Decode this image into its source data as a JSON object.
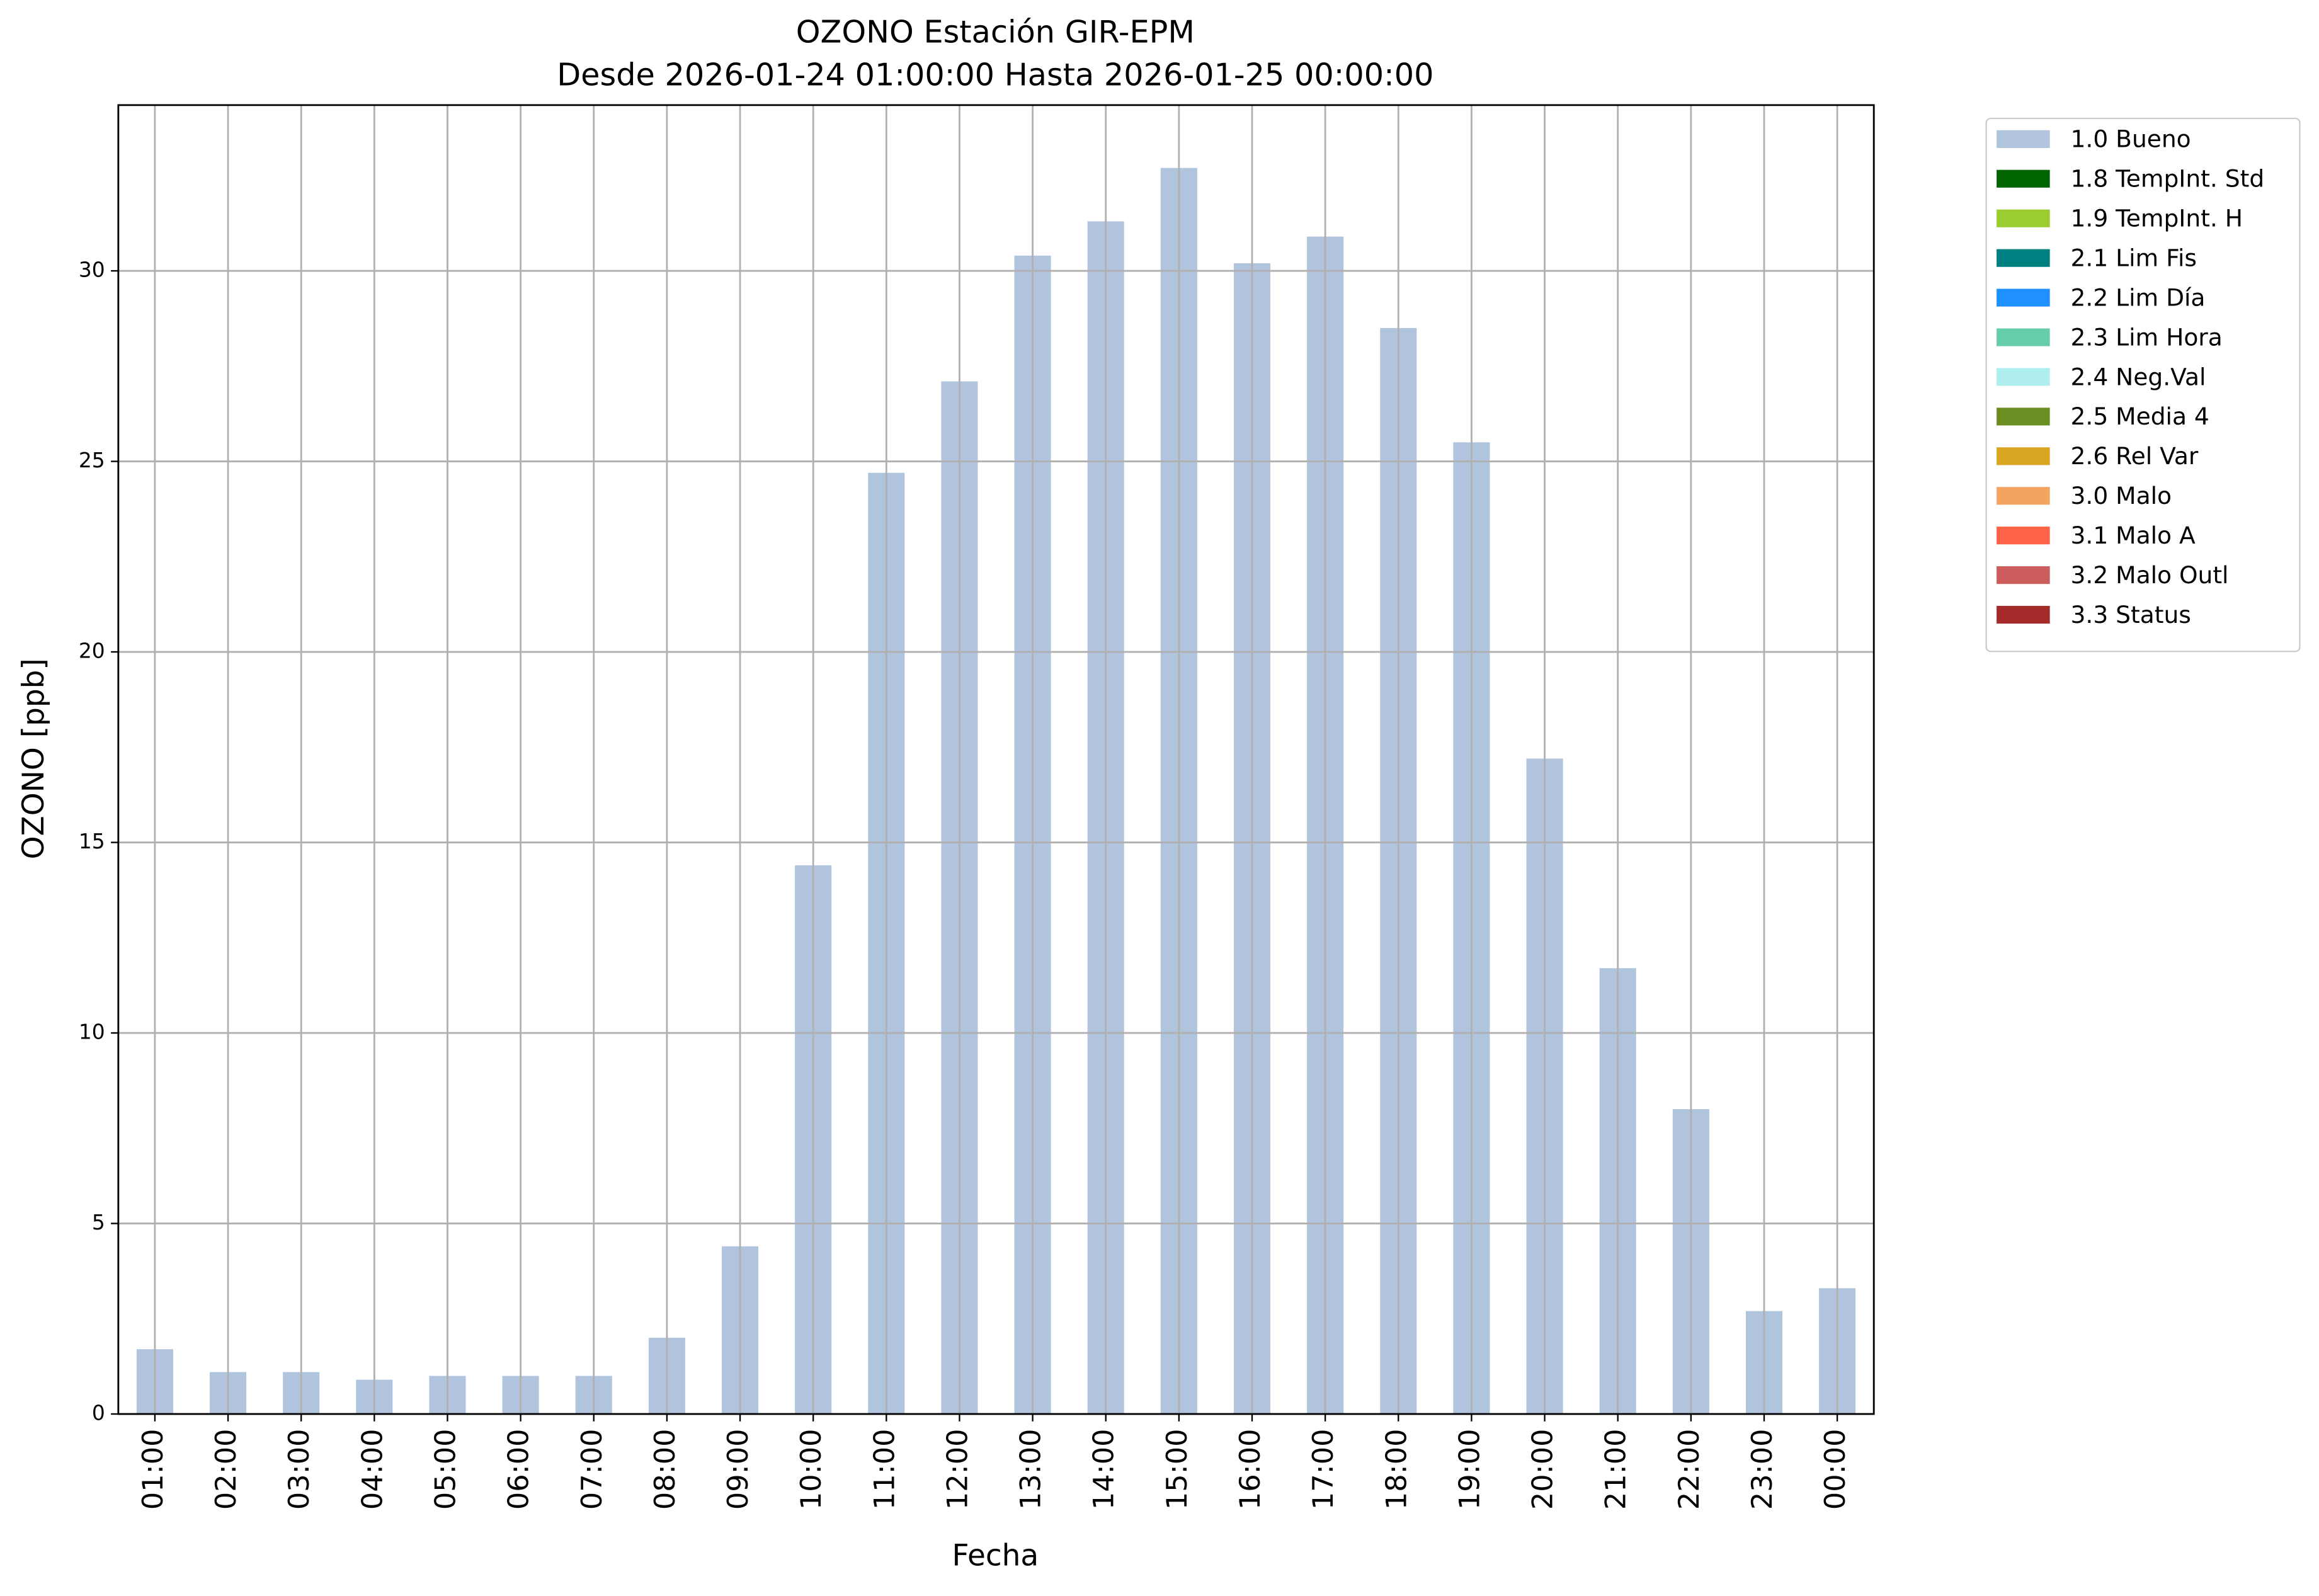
{
  "chart_data": {
    "type": "bar",
    "title": "OZONO Estación GIR-EPM",
    "subtitle": "Desde 2026-01-24 01:00:00 Hasta 2026-01-25 00:00:00",
    "x_label": "Fecha",
    "y_label": "OZONO [ppb]",
    "categories": [
      "01:00",
      "02:00",
      "03:00",
      "04:00",
      "05:00",
      "06:00",
      "07:00",
      "08:00",
      "09:00",
      "10:00",
      "11:00",
      "12:00",
      "13:00",
      "14:00",
      "15:00",
      "16:00",
      "17:00",
      "18:00",
      "19:00",
      "20:00",
      "21:00",
      "22:00",
      "23:00",
      "00:00"
    ],
    "series": [
      {
        "name": "1.0 Bueno",
        "color": "#b0c4de",
        "values": [
          1.7,
          1.1,
          1.1,
          0.9,
          1.0,
          1.0,
          1.0,
          2.0,
          4.4,
          14.4,
          24.7,
          27.1,
          30.4,
          31.3,
          32.7,
          30.2,
          30.9,
          28.5,
          25.5,
          17.2,
          11.7,
          8.0,
          2.7,
          3.3
        ]
      },
      {
        "name": "1.8 TempInt. Std",
        "color": "#006400"
      },
      {
        "name": "1.9 TempInt. H",
        "color": "#9acd32"
      },
      {
        "name": "2.1 Lim Fis",
        "color": "#008080"
      },
      {
        "name": "2.2 Lim Día",
        "color": "#1e90ff"
      },
      {
        "name": "2.3 Lim Hora",
        "color": "#66cdaa"
      },
      {
        "name": "2.4 Neg.Val",
        "color": "#afeeee"
      },
      {
        "name": "2.5 Media 4",
        "color": "#6b8e23"
      },
      {
        "name": "2.6 Rel Var",
        "color": "#daa520"
      },
      {
        "name": "3.0 Malo",
        "color": "#f4a460"
      },
      {
        "name": "3.1 Malo A",
        "color": "#ff6347"
      },
      {
        "name": "3.2 Malo Outl",
        "color": "#cd5c5c"
      },
      {
        "name": "3.3 Status",
        "color": "#a52a2a"
      }
    ],
    "ylim": [
      0,
      34.35
    ],
    "yticks": [
      0,
      5,
      10,
      15,
      20,
      25,
      30
    ],
    "grid": true,
    "legend": "outside-upper-right"
  }
}
